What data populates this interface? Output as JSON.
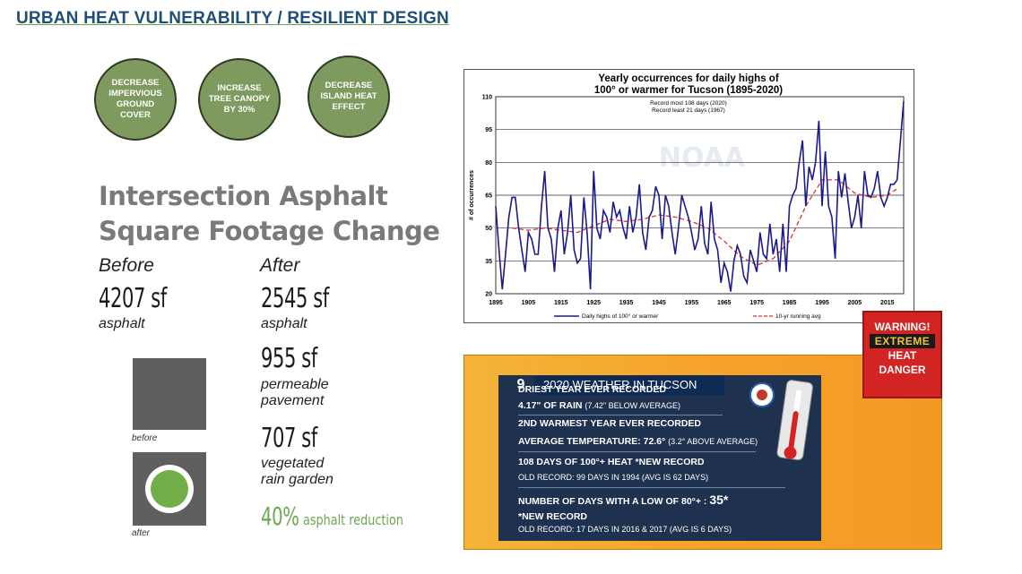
{
  "slide": {
    "title": "URBAN HEAT VULNERABILITY / RESILIENT DESIGN",
    "goals": [
      "DECREASE IMPERVIOUS GROUND COVER",
      "INCREASE TREE CANOPY BY 30%",
      "DECREASE ISLAND HEAT EFFECT"
    ],
    "heading_line1": "Intersection Asphalt",
    "heading_line2": "Square Footage Change",
    "before": {
      "label": "Before",
      "value": "4207 sf",
      "desc": "asphalt"
    },
    "after": {
      "label": "After",
      "items": [
        {
          "value": "2545 sf",
          "desc": "asphalt"
        },
        {
          "value": "955 sf",
          "desc_line1": "permeable",
          "desc_line2": "pavement"
        },
        {
          "value": "707 sf",
          "desc_line1": "vegetated",
          "desc_line2": "rain garden"
        }
      ],
      "reduction_value": "40%",
      "reduction_text": "asphalt reduction"
    },
    "diagram_labels": {
      "before": "before",
      "after": "after"
    }
  },
  "chart_data": {
    "type": "line",
    "title_line1": "Yearly occurrences for daily highs of",
    "title_line2": "100° or warmer for Tucson (1895-2020)",
    "annotation_line1": "Record most 108 days (2020)",
    "annotation_line2": "Record least 21 days (1967)",
    "watermark": "NOAA",
    "ylabel": "# of occurrences",
    "xlabel": "",
    "ylim": [
      20,
      110
    ],
    "xlim": [
      1895,
      2020
    ],
    "yticks": [
      20,
      35,
      50,
      65,
      80,
      95,
      110
    ],
    "xticks": [
      1895,
      1905,
      1915,
      1925,
      1935,
      1945,
      1955,
      1965,
      1975,
      1985,
      1995,
      2005,
      2015
    ],
    "grid": true,
    "legend_position": "bottom",
    "colors": {
      "daily": "#1a1a8c",
      "running": "#e03030"
    },
    "series": [
      {
        "name": "Daily highs of 100° or warmer",
        "style": "solid",
        "points": [
          [
            1895,
            60
          ],
          [
            1896,
            40
          ],
          [
            1897,
            22
          ],
          [
            1898,
            38
          ],
          [
            1899,
            55
          ],
          [
            1900,
            64
          ],
          [
            1901,
            64
          ],
          [
            1902,
            50
          ],
          [
            1903,
            40
          ],
          [
            1904,
            30
          ],
          [
            1905,
            48
          ],
          [
            1906,
            45
          ],
          [
            1907,
            38
          ],
          [
            1908,
            38
          ],
          [
            1909,
            60
          ],
          [
            1910,
            76
          ],
          [
            1911,
            50
          ],
          [
            1912,
            45
          ],
          [
            1913,
            30
          ],
          [
            1914,
            50
          ],
          [
            1915,
            58
          ],
          [
            1916,
            38
          ],
          [
            1917,
            48
          ],
          [
            1918,
            65
          ],
          [
            1919,
            40
          ],
          [
            1920,
            34
          ],
          [
            1921,
            36
          ],
          [
            1922,
            64
          ],
          [
            1923,
            48
          ],
          [
            1924,
            22
          ],
          [
            1925,
            76
          ],
          [
            1926,
            50
          ],
          [
            1927,
            45
          ],
          [
            1928,
            58
          ],
          [
            1929,
            55
          ],
          [
            1930,
            48
          ],
          [
            1931,
            62
          ],
          [
            1932,
            55
          ],
          [
            1933,
            58
          ],
          [
            1934,
            50
          ],
          [
            1935,
            45
          ],
          [
            1936,
            60
          ],
          [
            1937,
            48
          ],
          [
            1938,
            55
          ],
          [
            1939,
            70
          ],
          [
            1940,
            48
          ],
          [
            1941,
            40
          ],
          [
            1942,
            55
          ],
          [
            1943,
            58
          ],
          [
            1944,
            69
          ],
          [
            1945,
            65
          ],
          [
            1946,
            45
          ],
          [
            1947,
            65
          ],
          [
            1948,
            60
          ],
          [
            1949,
            48
          ],
          [
            1950,
            38
          ],
          [
            1951,
            50
          ],
          [
            1952,
            65
          ],
          [
            1953,
            60
          ],
          [
            1954,
            55
          ],
          [
            1955,
            48
          ],
          [
            1956,
            40
          ],
          [
            1957,
            45
          ],
          [
            1958,
            60
          ],
          [
            1959,
            43
          ],
          [
            1960,
            38
          ],
          [
            1961,
            62
          ],
          [
            1962,
            45
          ],
          [
            1963,
            40
          ],
          [
            1964,
            25
          ],
          [
            1965,
            34
          ],
          [
            1966,
            30
          ],
          [
            1967,
            21
          ],
          [
            1968,
            35
          ],
          [
            1969,
            42
          ],
          [
            1970,
            38
          ],
          [
            1971,
            28
          ],
          [
            1972,
            25
          ],
          [
            1973,
            40
          ],
          [
            1974,
            35
          ],
          [
            1975,
            30
          ],
          [
            1976,
            48
          ],
          [
            1977,
            38
          ],
          [
            1978,
            36
          ],
          [
            1979,
            52
          ],
          [
            1980,
            38
          ],
          [
            1981,
            45
          ],
          [
            1982,
            30
          ],
          [
            1983,
            52
          ],
          [
            1984,
            30
          ],
          [
            1985,
            60
          ],
          [
            1986,
            65
          ],
          [
            1987,
            68
          ],
          [
            1988,
            80
          ],
          [
            1989,
            90
          ],
          [
            1990,
            60
          ],
          [
            1991,
            78
          ],
          [
            1992,
            72
          ],
          [
            1993,
            80
          ],
          [
            1994,
            99
          ],
          [
            1995,
            60
          ],
          [
            1996,
            85
          ],
          [
            1997,
            60
          ],
          [
            1998,
            55
          ],
          [
            1999,
            36
          ],
          [
            2000,
            76
          ],
          [
            2001,
            64
          ],
          [
            2002,
            75
          ],
          [
            2003,
            62
          ],
          [
            2004,
            50
          ],
          [
            2005,
            55
          ],
          [
            2006,
            65
          ],
          [
            2007,
            50
          ],
          [
            2008,
            76
          ],
          [
            2009,
            65
          ],
          [
            2010,
            64
          ],
          [
            2011,
            68
          ],
          [
            2012,
            76
          ],
          [
            2013,
            64
          ],
          [
            2014,
            60
          ],
          [
            2015,
            64
          ],
          [
            2016,
            70
          ],
          [
            2017,
            70
          ],
          [
            2018,
            72
          ],
          [
            2019,
            90
          ],
          [
            2020,
            108
          ]
        ]
      },
      {
        "name": "10-yr running avg",
        "style": "dashed",
        "points": [
          [
            1900,
            50
          ],
          [
            1905,
            49
          ],
          [
            1910,
            50
          ],
          [
            1915,
            49
          ],
          [
            1920,
            48
          ],
          [
            1925,
            51
          ],
          [
            1930,
            54
          ],
          [
            1935,
            53
          ],
          [
            1940,
            54
          ],
          [
            1945,
            56
          ],
          [
            1950,
            55
          ],
          [
            1955,
            53
          ],
          [
            1960,
            50
          ],
          [
            1965,
            44
          ],
          [
            1970,
            37
          ],
          [
            1975,
            33
          ],
          [
            1980,
            36
          ],
          [
            1985,
            44
          ],
          [
            1990,
            60
          ],
          [
            1995,
            72
          ],
          [
            2000,
            72
          ],
          [
            2005,
            66
          ],
          [
            2010,
            64
          ],
          [
            2015,
            65
          ],
          [
            2018,
            68
          ]
        ]
      }
    ]
  },
  "weather": {
    "channel": "9",
    "header": "2020 WEATHER IN TUCSON",
    "rows": [
      {
        "main": "DRIEST YEAR EVER RECORDED",
        "sub_main": "4.17\" OF RAIN",
        "sub_detail": "(7.42\" BELOW AVERAGE)"
      },
      {
        "main": "2ND WARMEST YEAR EVER RECORDED",
        "sub_main": "AVERAGE TEMPERATURE: 72.6°",
        "sub_detail": "(3.2° ABOVE AVERAGE)"
      },
      {
        "main": "108 DAYS OF 100°+ HEAT    *NEW RECORD",
        "sub_detail": "OLD RECORD: 99 DAYS IN 1994 (AVG IS 62 DAYS)"
      },
      {
        "main": "NUMBER OF DAYS WITH A LOW OF 80°+ :",
        "value": "35*",
        "sub_main": "*NEW RECORD",
        "sub_detail": "OLD RECORD: 17 DAYS IN 2016 & 2017 (AVG IS 6 DAYS)"
      }
    ]
  },
  "warning": {
    "line1": "WARNING!",
    "line2": "EXTREME",
    "line3": "HEAT",
    "line4": "DANGER"
  }
}
